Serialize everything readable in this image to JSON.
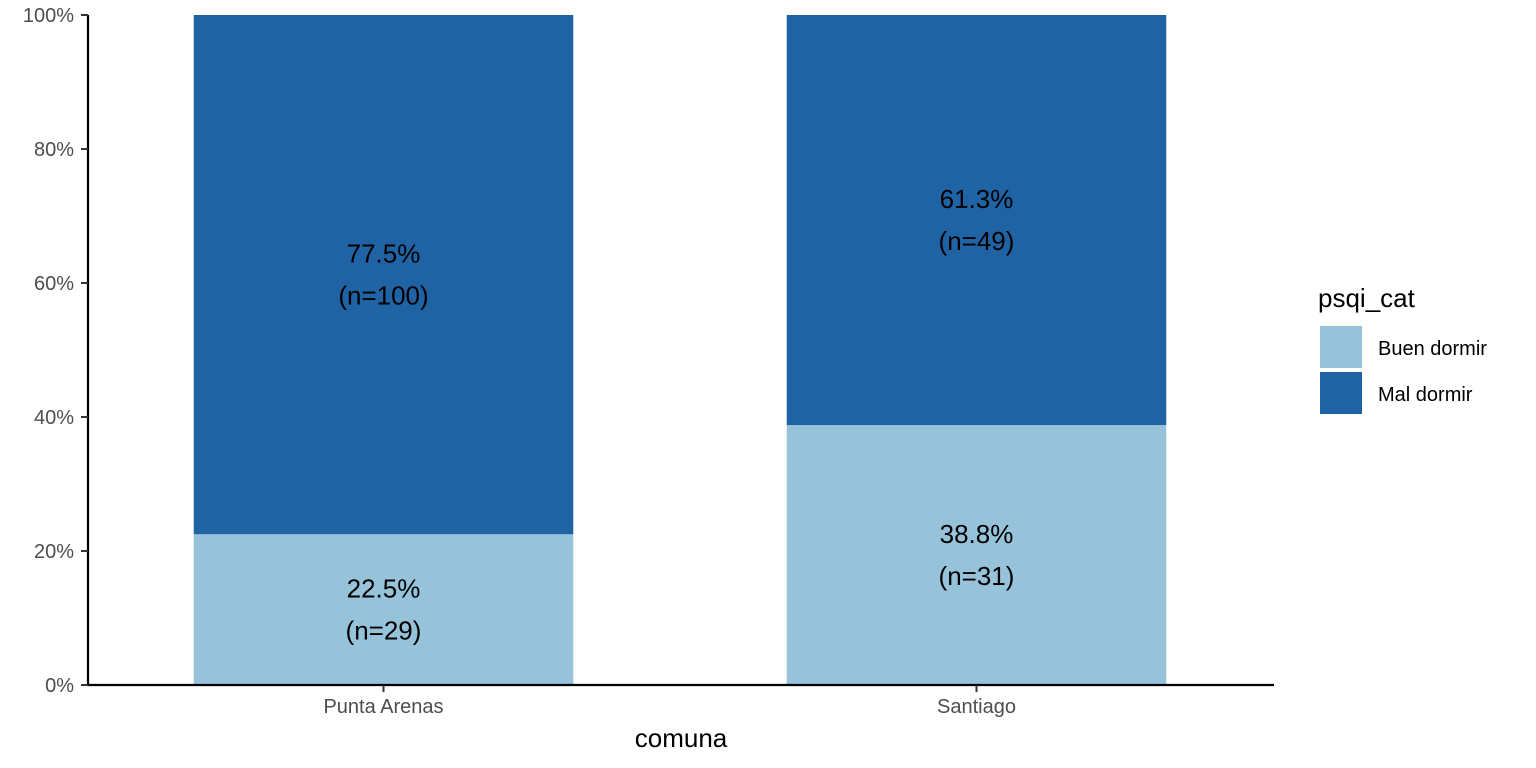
{
  "chart_data": {
    "type": "bar",
    "stacked": true,
    "categories": [
      "Punta Arenas",
      "Santiago"
    ],
    "series": [
      {
        "name": "Buen dormir",
        "values": [
          22.5,
          38.8
        ],
        "labels": [
          "22.5%",
          "38.8%"
        ],
        "counts": [
          "(n=29)",
          "(n=31)"
        ],
        "color": "#96c2da"
      },
      {
        "name": "Mal dormir",
        "values": [
          77.5,
          61.3
        ],
        "labels": [
          "77.5%",
          "61.3%"
        ],
        "counts": [
          "(n=100)",
          "(n=49)"
        ],
        "color": "#1f63a5"
      }
    ],
    "title": "",
    "xlabel": "comuna",
    "ylabel": "",
    "ylim": [
      0,
      100
    ],
    "yticks": [
      "0%",
      "20%",
      "40%",
      "60%",
      "80%",
      "100%"
    ],
    "legend": {
      "title": "psqi_cat",
      "position": "right"
    },
    "grid": false
  }
}
